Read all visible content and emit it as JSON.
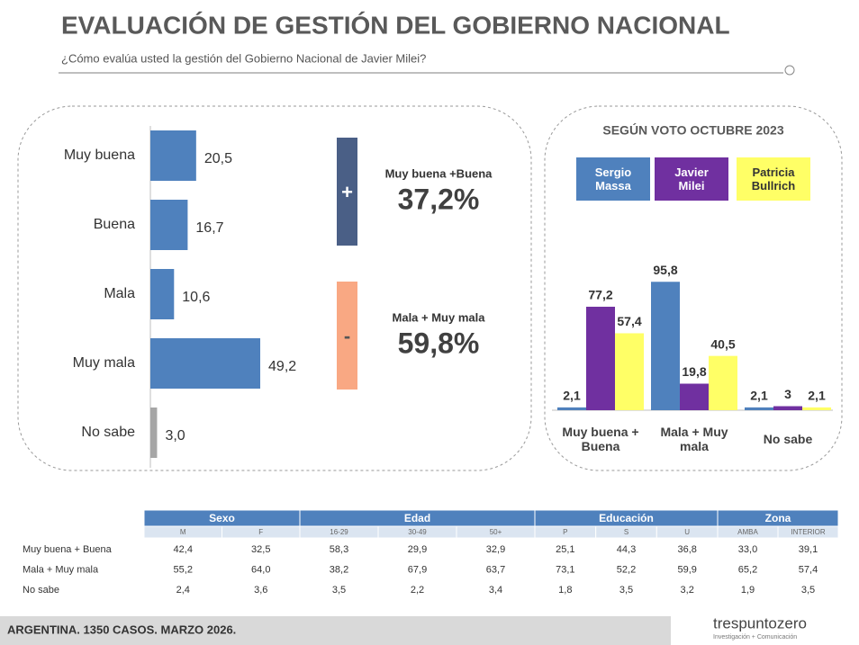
{
  "header": {
    "title": "EVALUACIÓN DE GESTIÓN DEL GOBIERNO NACIONAL",
    "subtitle": "¿Cómo evalúa usted la gestión del Gobierno Nacional de Javier Milei?"
  },
  "chart_data": [
    {
      "type": "hbar",
      "categories": [
        "Muy buena",
        "Buena",
        "Mala",
        "Muy mala",
        "No sabe"
      ],
      "values": [
        20.5,
        16.7,
        10.6,
        49.2,
        3.0
      ],
      "value_labels": [
        "20,5",
        "16,7",
        "10,6",
        "49,2",
        "3,0"
      ],
      "colors": [
        "#4f81bd",
        "#4f81bd",
        "#4f81bd",
        "#4f81bd",
        "#a6a6a6"
      ]
    },
    {
      "type": "bar",
      "title": "SEGÚN VOTO OCTUBRE 2023",
      "categories": [
        "Muy buena + Buena",
        "Mala + Muy mala",
        "No sabe"
      ],
      "series": [
        {
          "name": "Sergio Massa",
          "color": "#4f81bd",
          "values": [
            2.1,
            95.8,
            2.1
          ],
          "value_labels": [
            "2,1",
            "95,8",
            "2,1"
          ]
        },
        {
          "name": "Javier Milei",
          "color": "#7030a0",
          "values": [
            77.2,
            19.8,
            3
          ],
          "value_labels": [
            "77,2",
            "19,8",
            "3"
          ]
        },
        {
          "name": "Patricia Bullrich",
          "color": "#ffff66",
          "values": [
            57.4,
            40.5,
            2.1
          ],
          "value_labels": [
            "57,4",
            "40,5",
            "2,1"
          ]
        }
      ]
    }
  ],
  "summary": [
    {
      "sign": "+",
      "label": "Muy buena +Buena",
      "value": "37,2%",
      "color": "#4a5f86"
    },
    {
      "sign": "-",
      "label": "Mala + Muy mala",
      "value": "59,8%",
      "color": "#f9a883"
    }
  ],
  "table": {
    "groups": [
      {
        "name": "Sexo",
        "columns": [
          "M",
          "F"
        ]
      },
      {
        "name": "Edad",
        "columns": [
          "16-29",
          "30-49",
          "50+"
        ]
      },
      {
        "name": "Educación",
        "columns": [
          "P",
          "S",
          "U"
        ]
      },
      {
        "name": "Zona",
        "columns": [
          "AMBA",
          "INTERIOR"
        ]
      }
    ],
    "rows": [
      {
        "label": "Muy buena + Buena",
        "cells": [
          "42,4",
          "32,5",
          "58,3",
          "29,9",
          "32,9",
          "25,1",
          "44,3",
          "36,8",
          "33,0",
          "39,1"
        ]
      },
      {
        "label": "Mala + Muy mala",
        "cells": [
          "55,2",
          "64,0",
          "38,2",
          "67,9",
          "63,7",
          "73,1",
          "52,2",
          "59,9",
          "65,2",
          "57,4"
        ]
      },
      {
        "label": "No sabe",
        "cells": [
          "2,4",
          "3,6",
          "3,5",
          "2,2",
          "3,4",
          "1,8",
          "3,5",
          "3,2",
          "1,9",
          "3,5"
        ]
      }
    ]
  },
  "footer": {
    "note": "ARGENTINA. 1350 CASOS. MARZO 2026.",
    "brand": "trespuntozero",
    "tagline": "Investigación + Comunicación"
  }
}
